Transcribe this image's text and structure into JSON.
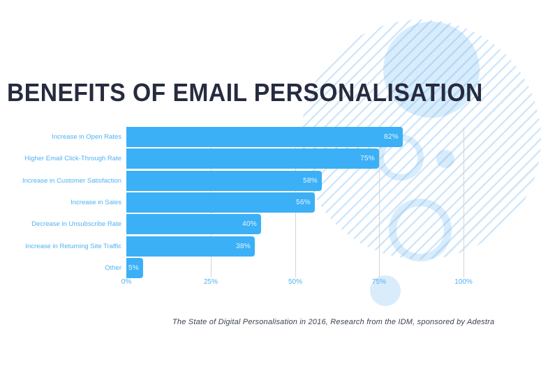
{
  "title": "BENEFITS OF EMAIL PERSONALISATION",
  "source_note": "The State of Digital Personalisation in 2016, Research from the IDM, sponsored by Adestra",
  "chart_data": {
    "type": "bar",
    "orientation": "horizontal",
    "title": "BENEFITS OF EMAIL PERSONALISATION",
    "categories": [
      "Increase in Open Rates",
      "Higher Email Click-Through Rate",
      "Increase in Customer Satisfaction",
      "Increase in Sales",
      "Decrease in Unsubscribe Rate",
      "Increase in Returning Site Traffic",
      "Other"
    ],
    "values": [
      82,
      75,
      58,
      56,
      40,
      38,
      5
    ],
    "value_labels": [
      "82%",
      "75%",
      "58%",
      "56%",
      "40%",
      "38%",
      "5%"
    ],
    "x_ticks": [
      {
        "value": 0,
        "label": "0%"
      },
      {
        "value": 25,
        "label": "25%"
      },
      {
        "value": 50,
        "label": "50%"
      },
      {
        "value": 75,
        "label": "75%"
      },
      {
        "value": 100,
        "label": "100%"
      }
    ],
    "xlim": [
      0,
      100
    ],
    "xlabel": "",
    "ylabel": "",
    "grid": "vertical-gridlines-behind-bars",
    "legend": "none",
    "colors": {
      "bar": "#3bb0f6",
      "category_label": "#4fb2f2",
      "tick_label": "#4fb2f2",
      "value_label": "#ffffff",
      "gridline": "#d5d5d5",
      "title": "#262b3f",
      "footer": "#3c434f",
      "decor": "#d9ecfb",
      "background": "#ffffff"
    }
  }
}
